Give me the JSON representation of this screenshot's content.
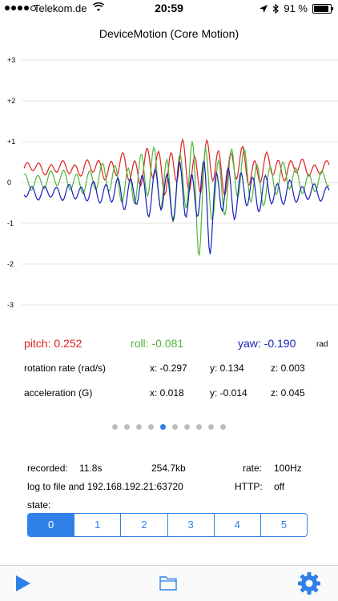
{
  "status": {
    "carrier": "Telekom.de",
    "time": "20:59",
    "battery": "91 %",
    "battery_level": 0.91
  },
  "title": "DeviceMotion (Core Motion)",
  "chart_data": {
    "type": "line",
    "ylim": [
      -3,
      3
    ],
    "y_ticks": [
      "+3",
      "+2",
      "+1",
      "0",
      "-1",
      "-2",
      "-3"
    ],
    "grid": true,
    "series": [
      {
        "name": "pitch",
        "color": "#e02020"
      },
      {
        "name": "roll",
        "color": "#4fb53a"
      },
      {
        "name": "yaw",
        "color": "#1520b8"
      }
    ]
  },
  "readouts": {
    "pitch": "pitch: 0.252",
    "roll": "roll: -0.081",
    "yaw": "yaw: -0.190",
    "unit": "rad"
  },
  "rotation": {
    "label": "rotation rate (rad/s)",
    "x": "x: -0.297",
    "y": "y: 0.134",
    "z": "z: 0.003"
  },
  "acceleration": {
    "label": "acceleration (G)",
    "x": "x: 0.018",
    "y": "y: -0.014",
    "z": "z: 0.045"
  },
  "pager": {
    "count": 10,
    "active": 4
  },
  "info": {
    "recorded_label": "recorded:",
    "recorded_time": "11.8s",
    "recorded_size": "254.7kb",
    "rate_label": "rate:",
    "rate_value": "100Hz",
    "log_text": "log to file and 192.168.192.21:63720",
    "http_label": "HTTP:",
    "http_value": "off",
    "state_label": "state:"
  },
  "state": {
    "options": [
      "0",
      "1",
      "2",
      "3",
      "4",
      "5"
    ],
    "selected": 0
  },
  "colors": {
    "accent": "#2f80e8"
  },
  "toolbar": {
    "icons": [
      "play-icon",
      "folder-icon",
      "gear-icon"
    ]
  }
}
